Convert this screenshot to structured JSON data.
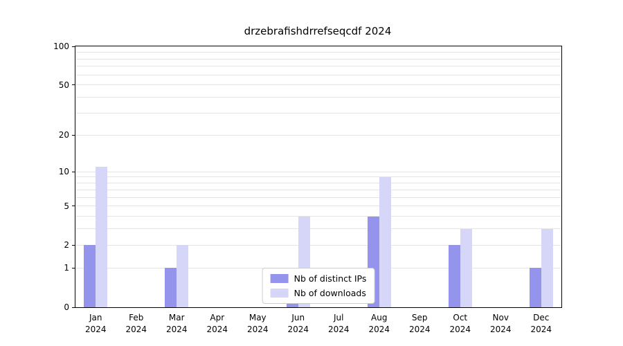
{
  "chart_data": {
    "type": "bar",
    "title": "drzebrafishdrrefseqcdf 2024",
    "categories": [
      "Jan 2024",
      "Feb 2024",
      "Mar 2024",
      "Apr 2024",
      "May 2024",
      "Jun 2024",
      "Jul 2024",
      "Aug 2024",
      "Sep 2024",
      "Oct 2024",
      "Nov 2024",
      "Dec 2024"
    ],
    "series": [
      {
        "name": "Nb of distinct IPs",
        "color": "#9494ec",
        "values": [
          2,
          0,
          1,
          0,
          0,
          1,
          0,
          4,
          0,
          2,
          0,
          1
        ]
      },
      {
        "name": "Nb of downloads",
        "color": "#d6d6f8",
        "values": [
          11,
          0,
          2,
          0,
          0,
          4,
          0,
          9,
          0,
          3,
          0,
          3
        ]
      }
    ],
    "yticks": [
      0,
      1,
      2,
      5,
      10,
      20,
      50,
      100
    ],
    "ylim": [
      0,
      100
    ],
    "yscale": "log10(1+x)",
    "xlabel": "",
    "ylabel": "",
    "grid": true,
    "legend_position": "lower center"
  }
}
